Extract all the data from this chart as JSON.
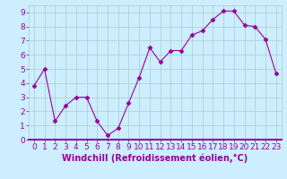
{
  "x": [
    0,
    1,
    2,
    3,
    4,
    5,
    6,
    7,
    8,
    9,
    10,
    11,
    12,
    13,
    14,
    15,
    16,
    17,
    18,
    19,
    20,
    21,
    22,
    23
  ],
  "y": [
    3.8,
    5.0,
    1.3,
    2.4,
    3.0,
    3.0,
    1.3,
    0.3,
    0.8,
    2.6,
    4.4,
    6.5,
    5.5,
    6.3,
    6.3,
    7.4,
    7.7,
    8.5,
    9.1,
    9.1,
    8.1,
    8.0,
    7.1,
    4.7
  ],
  "line_color": "#990099",
  "marker": "D",
  "marker_size": 2.5,
  "bg_color": "#cceeff",
  "grid_color": "#aacccc",
  "xlabel": "Windchill (Refroidissement éolien,°C)",
  "xlim": [
    -0.5,
    23.5
  ],
  "ylim": [
    0,
    9.5
  ],
  "yticks": [
    0,
    1,
    2,
    3,
    4,
    5,
    6,
    7,
    8,
    9
  ],
  "xticks": [
    0,
    1,
    2,
    3,
    4,
    5,
    6,
    7,
    8,
    9,
    10,
    11,
    12,
    13,
    14,
    15,
    16,
    17,
    18,
    19,
    20,
    21,
    22,
    23
  ],
  "tick_label_color": "#990099",
  "xlabel_color": "#990099",
  "xlabel_fontsize": 7,
  "tick_fontsize": 6.5,
  "spine_color": "#990099",
  "fig_width": 3.2,
  "fig_height": 2.0,
  "dpi": 100
}
